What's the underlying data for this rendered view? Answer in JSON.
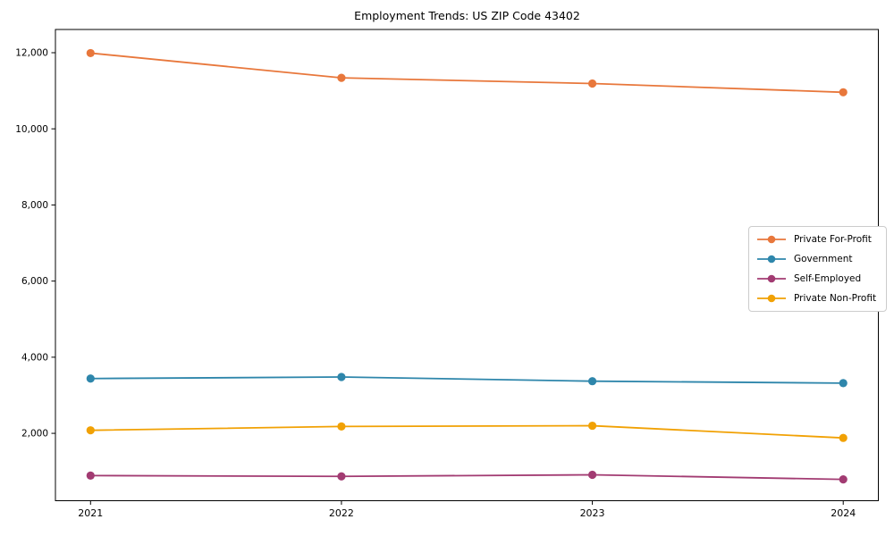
{
  "chart_data": {
    "type": "line",
    "title": "Employment Trends: US ZIP Code 43402",
    "categories": [
      "2021",
      "2022",
      "2023",
      "2024"
    ],
    "x": [
      2021,
      2022,
      2023,
      2024
    ],
    "series": [
      {
        "name": "Private For-Profit",
        "color": "#e8773b",
        "values": [
          11990,
          11340,
          11190,
          10960
        ]
      },
      {
        "name": "Government",
        "color": "#2e86ab",
        "values": [
          3440,
          3480,
          3370,
          3320
        ]
      },
      {
        "name": "Self-Employed",
        "color": "#a23b72",
        "values": [
          890,
          870,
          910,
          790
        ]
      },
      {
        "name": "Private Non-Profit",
        "color": "#f1a104",
        "values": [
          2080,
          2180,
          2200,
          1880
        ]
      }
    ],
    "xlabel": "",
    "ylabel": "",
    "xlim": [
      2020.86,
      2024.14
    ],
    "ylim": [
      230,
      12610
    ],
    "y_ticks": [
      2000,
      4000,
      6000,
      8000,
      10000,
      12000
    ],
    "y_tick_labels": [
      "2,000",
      "4,000",
      "6,000",
      "8,000",
      "10,000",
      "12,000"
    ],
    "grid": false,
    "marker": "circle",
    "legend_position": "center right",
    "axis_color": "#000000",
    "background_color": "#ffffff"
  }
}
